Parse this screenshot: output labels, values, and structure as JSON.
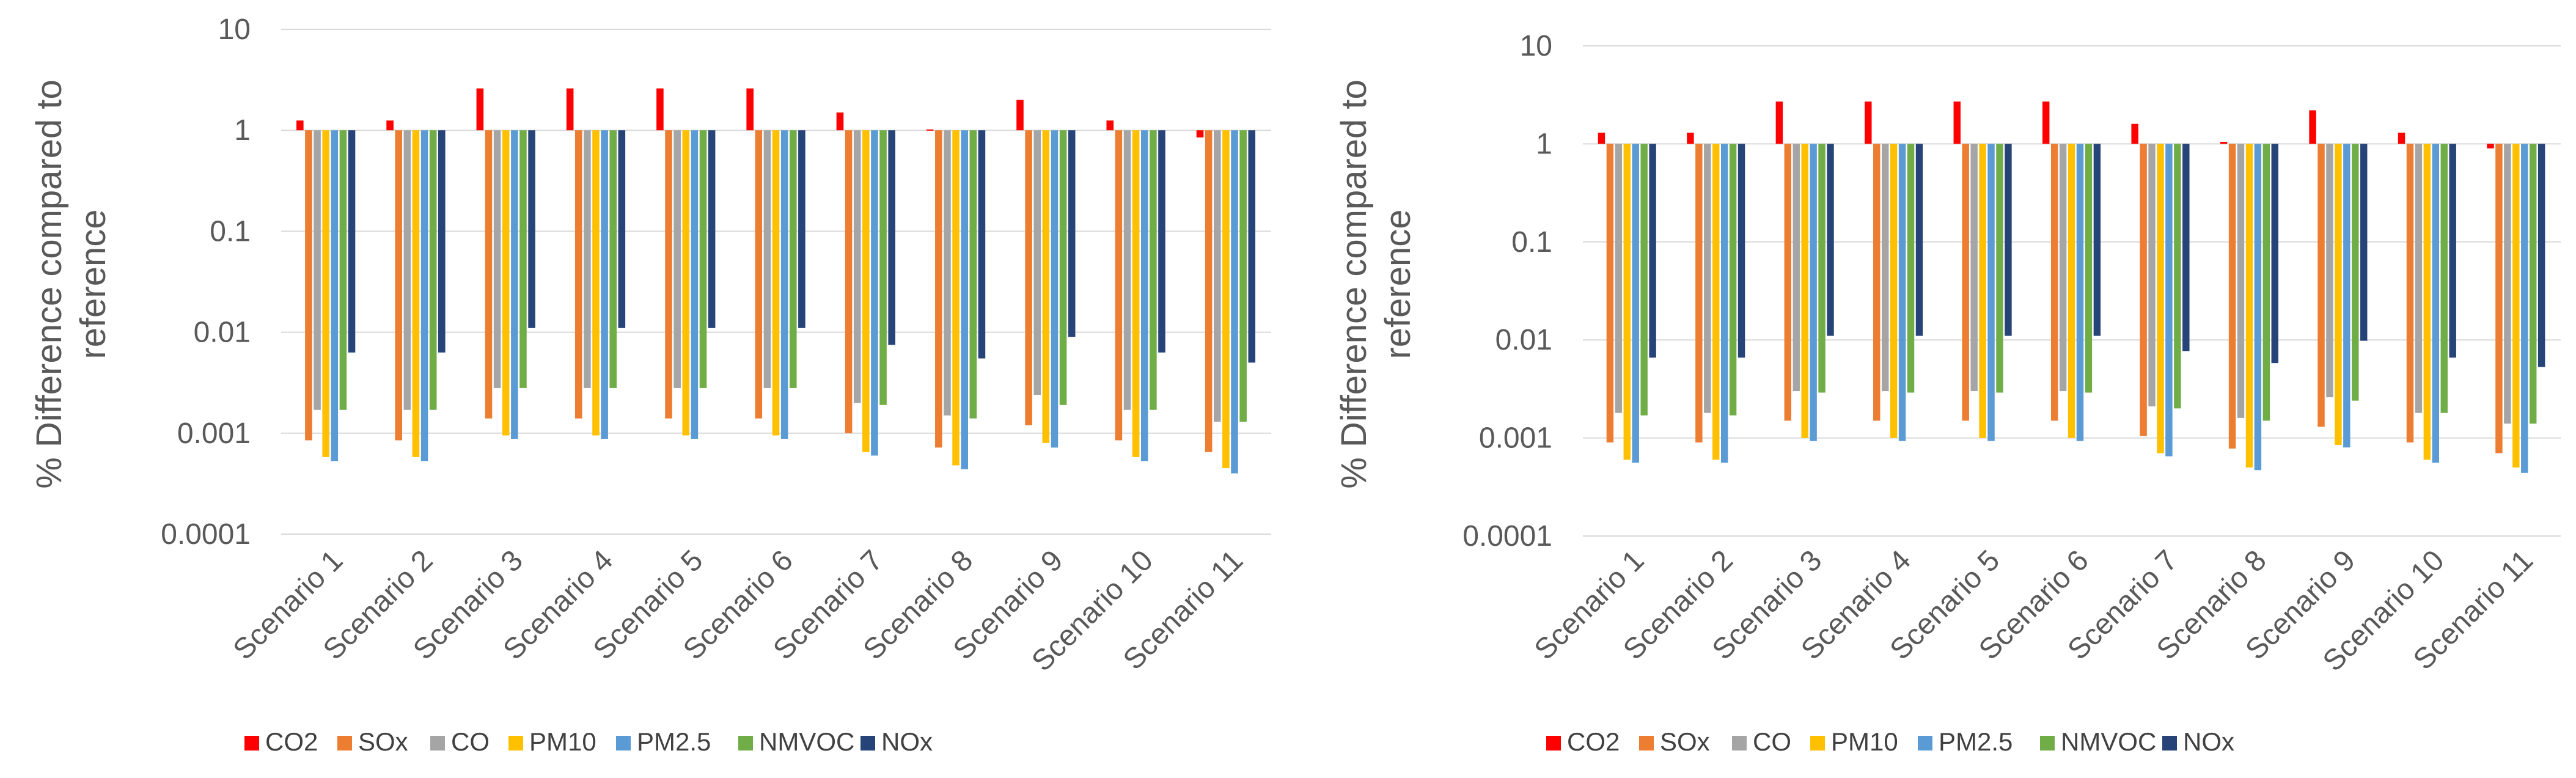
{
  "series_colors": {
    "CO2": "#ff0000",
    "SOx": "#ed7d31",
    "CO": "#a5a5a5",
    "PM10": "#ffc000",
    "PM2.5": "#5b9bd5",
    "NMVOC": "#70ad47",
    "NOx": "#264478"
  },
  "chart_data": [
    {
      "type": "bar",
      "scale": "log",
      "ylabel": "% Difference compared to reference",
      "yticks": [
        "10",
        "1",
        "0.1",
        "0.01",
        "0.001",
        "0.0001"
      ],
      "ylim": [
        0.0001,
        10
      ],
      "baseline": 1,
      "categories": [
        "Scenario 1",
        "Scenario 2",
        "Scenario 3",
        "Scenario 4",
        "Scenario 5",
        "Scenario 6",
        "Scenario 7",
        "Scenario 8",
        "Scenario 9",
        "Scenario 10",
        "Scenario 11"
      ],
      "series": [
        {
          "name": "CO2",
          "values": [
            1.25,
            1.25,
            2.6,
            2.6,
            2.6,
            2.6,
            1.5,
            1.02,
            2.0,
            1.25,
            0.85
          ]
        },
        {
          "name": "SOx",
          "values": [
            0.00085,
            0.00085,
            0.0014,
            0.0014,
            0.0014,
            0.0014,
            0.001,
            0.00072,
            0.0012,
            0.00085,
            0.00065
          ]
        },
        {
          "name": "CO",
          "values": [
            0.0017,
            0.0017,
            0.0028,
            0.0028,
            0.0028,
            0.0028,
            0.002,
            0.0015,
            0.0024,
            0.0017,
            0.0013
          ]
        },
        {
          "name": "PM10",
          "values": [
            0.00058,
            0.00058,
            0.00095,
            0.00095,
            0.00095,
            0.00095,
            0.00065,
            0.00048,
            0.0008,
            0.00058,
            0.00045
          ]
        },
        {
          "name": "PM2.5",
          "values": [
            0.00053,
            0.00053,
            0.00088,
            0.00088,
            0.00088,
            0.00088,
            0.0006,
            0.00044,
            0.00072,
            0.00053,
            0.0004
          ]
        },
        {
          "name": "NMVOC",
          "values": [
            0.0017,
            0.0017,
            0.0028,
            0.0028,
            0.0028,
            0.0028,
            0.0019,
            0.0014,
            0.0019,
            0.0017,
            0.0013
          ]
        },
        {
          "name": "NOx",
          "values": [
            0.0063,
            0.0063,
            0.011,
            0.011,
            0.011,
            0.011,
            0.0075,
            0.0055,
            0.009,
            0.0063,
            0.005
          ]
        }
      ],
      "legend": [
        "CO2",
        "SOx",
        "CO",
        "PM10",
        "PM2.5",
        "NMVOC",
        "NOx"
      ],
      "legend_position": "bottom"
    },
    {
      "type": "bar",
      "scale": "log",
      "ylabel": "% Difference compared to reference",
      "yticks": [
        "10",
        "1",
        "0.1",
        "0.01",
        "0.001",
        "0.0001"
      ],
      "ylim": [
        0.0001,
        10
      ],
      "baseline": 1,
      "categories": [
        "Scenario 1",
        "Scenario 2",
        "Scenario 3",
        "Scenario 4",
        "Scenario 5",
        "Scenario 6",
        "Scenario 7",
        "Scenario 8",
        "Scenario 9",
        "Scenario 10",
        "Scenario 11"
      ],
      "series": [
        {
          "name": "CO2",
          "values": [
            1.3,
            1.3,
            2.7,
            2.7,
            2.7,
            2.7,
            1.6,
            1.05,
            2.2,
            1.3,
            0.9
          ]
        },
        {
          "name": "SOx",
          "values": [
            0.0009,
            0.0009,
            0.0015,
            0.0015,
            0.0015,
            0.0015,
            0.00105,
            0.00078,
            0.0013,
            0.0009,
            0.0007
          ]
        },
        {
          "name": "CO",
          "values": [
            0.0018,
            0.0018,
            0.003,
            0.003,
            0.003,
            0.003,
            0.0021,
            0.0016,
            0.0026,
            0.0018,
            0.0014
          ]
        },
        {
          "name": "PM10",
          "values": [
            0.0006,
            0.0006,
            0.001,
            0.001,
            0.001,
            0.001,
            0.0007,
            0.0005,
            0.00085,
            0.0006,
            0.0005
          ]
        },
        {
          "name": "PM2.5",
          "values": [
            0.00056,
            0.00056,
            0.00093,
            0.00093,
            0.00093,
            0.00093,
            0.00065,
            0.00047,
            0.0008,
            0.00056,
            0.00044
          ]
        },
        {
          "name": "NMVOC",
          "values": [
            0.0017,
            0.0017,
            0.0029,
            0.0029,
            0.0029,
            0.0029,
            0.002,
            0.0015,
            0.0024,
            0.0018,
            0.0014
          ]
        },
        {
          "name": "NOx",
          "values": [
            0.0066,
            0.0066,
            0.011,
            0.011,
            0.011,
            0.011,
            0.0077,
            0.0058,
            0.0098,
            0.0066,
            0.0053
          ]
        }
      ],
      "legend": [
        "CO2",
        "SOx",
        "CO",
        "PM10",
        "PM2.5",
        "NMVOC",
        "NOx"
      ],
      "legend_position": "bottom"
    }
  ]
}
